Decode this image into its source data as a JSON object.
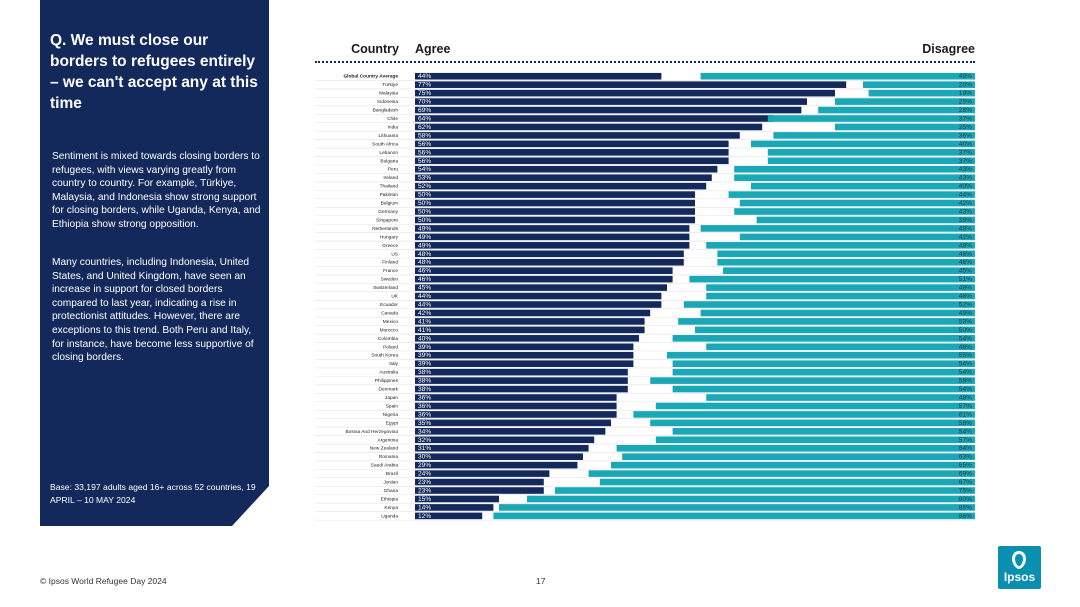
{
  "sidebar": {
    "question": "Q. We must close our borders to refugees entirely – we can't accept any at this time",
    "paragraph1": "Sentiment is mixed towards closing borders to refugees, with views varying greatly from country to country. For example, Türkiye, Malaysia, and Indonesia show strong support for closing borders, while Uganda, Kenya, and Ethiopia show strong opposition.",
    "paragraph2": "Many countries, including Indonesia, United States, and United Kingdom, have seen an increase in support for closed borders compared to last year, indicating a rise in protectionist attitudes. However, there are exceptions to this trend. Both Peru and Italy, for instance, have become less supportive of closing borders.",
    "base": "Base: 33,197 adults aged 16+ across 52 countries, 19 APRIL – 10 MAY 2024"
  },
  "header": {
    "country": "Country",
    "agree": "Agree",
    "disagree": "Disagree"
  },
  "footer": {
    "source": "© Ipsos World Refugee Day 2024",
    "page": "17"
  },
  "logo": {
    "text": "Ipsos"
  },
  "colors": {
    "sidebar": "#13295b",
    "agree": "#13295b",
    "disagree": "#1aa7b6",
    "neutral": "#ffffff",
    "logo": "#0a8fb1"
  },
  "chart_data": {
    "type": "bar",
    "stacked": true,
    "orientation": "horizontal",
    "xlim": [
      0,
      100
    ],
    "categories": [
      "Global Country Average",
      "Türkiye",
      "Malaysia",
      "Indonesia",
      "Bangladesh",
      "Chile",
      "India",
      "Lithuania",
      "South Africa",
      "Lebanon",
      "Bulgaria",
      "Peru",
      "Ireland",
      "Thailand",
      "Pakistan",
      "Belgium",
      "Germany",
      "Singapore",
      "Netherlands",
      "Hungary",
      "Greece",
      "US",
      "Finland",
      "France",
      "Sweden",
      "Switzerland",
      "UK",
      "Ecuador",
      "Canada",
      "Mexico",
      "Morocco",
      "Colombia",
      "Poland",
      "South Korea",
      "Italy",
      "Australia",
      "Philippines",
      "Denmark",
      "Japan",
      "Spain",
      "Nigeria",
      "Egypt",
      "Bosnia And Herzegovina",
      "Argentina",
      "New Zealand",
      "Romania",
      "Saudi Arabia",
      "Brazil",
      "Jordan",
      "Ghana",
      "Ethiopia",
      "Kenya",
      "Uganda"
    ],
    "series": [
      {
        "name": "Agree",
        "values": [
          44,
          77,
          75,
          70,
          69,
          64,
          62,
          58,
          56,
          56,
          56,
          54,
          53,
          52,
          50,
          50,
          50,
          50,
          49,
          49,
          49,
          48,
          48,
          46,
          46,
          45,
          44,
          44,
          42,
          41,
          41,
          40,
          39,
          39,
          39,
          38,
          38,
          38,
          36,
          36,
          36,
          35,
          34,
          32,
          31,
          30,
          29,
          24,
          23,
          23,
          15,
          14,
          12
        ]
      },
      {
        "name": "Disagree",
        "values": [
          49,
          20,
          19,
          25,
          28,
          37,
          25,
          36,
          40,
          37,
          37,
          43,
          43,
          40,
          44,
          42,
          43,
          39,
          49,
          42,
          48,
          46,
          46,
          45,
          51,
          48,
          48,
          52,
          49,
          53,
          50,
          54,
          48,
          55,
          54,
          54,
          58,
          54,
          48,
          57,
          61,
          58,
          54,
          57,
          64,
          63,
          65,
          69,
          67,
          75,
          80,
          85,
          86
        ]
      }
    ]
  }
}
